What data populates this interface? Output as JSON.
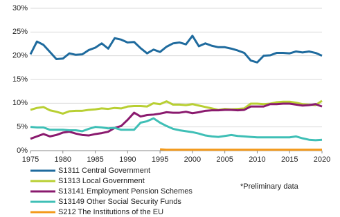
{
  "chart_data": {
    "type": "line",
    "x": [
      1975,
      1976,
      1977,
      1978,
      1979,
      1980,
      1981,
      1982,
      1983,
      1984,
      1985,
      1986,
      1987,
      1988,
      1989,
      1990,
      1991,
      1992,
      1993,
      1994,
      1995,
      1996,
      1997,
      1998,
      1999,
      2000,
      2001,
      2002,
      2003,
      2004,
      2005,
      2006,
      2007,
      2008,
      2009,
      2010,
      2011,
      2012,
      2013,
      2014,
      2015,
      2016,
      2017,
      2018,
      2019,
      2020
    ],
    "xlim": [
      1975,
      2020
    ],
    "xticks": [
      1975,
      1980,
      1985,
      1990,
      1995,
      2000,
      2005,
      2010,
      2015,
      2020
    ],
    "ylim": [
      0,
      30
    ],
    "yticks": [
      {
        "value": 0,
        "label": "0%"
      },
      {
        "value": 5,
        "label": "5%"
      },
      {
        "value": 10,
        "label": "10%"
      },
      {
        "value": 15,
        "label": "15%"
      },
      {
        "value": 20,
        "label": "20%"
      },
      {
        "value": 25,
        "label": "25%"
      },
      {
        "value": 30,
        "label": "30%"
      }
    ],
    "grid": true,
    "annotation": "*Preliminary data",
    "series": [
      {
        "name": "S1311 Central Government",
        "color": "#1f6b9e",
        "values": [
          20.3,
          23.0,
          22.3,
          20.8,
          19.3,
          19.4,
          20.5,
          20.2,
          20.3,
          21.2,
          21.7,
          22.6,
          21.5,
          23.7,
          23.4,
          22.8,
          22.9,
          21.6,
          20.5,
          21.3,
          20.8,
          21.9,
          22.6,
          22.8,
          22.4,
          24.2,
          22.0,
          22.6,
          22.1,
          21.8,
          21.8,
          21.5,
          21.1,
          20.6,
          19.0,
          18.6,
          20.0,
          20.1,
          20.6,
          20.6,
          20.5,
          20.9,
          20.7,
          20.9,
          20.6,
          20.0
        ]
      },
      {
        "name": "S1313 Local Government",
        "color": "#b8cf32",
        "values": [
          8.6,
          9.0,
          9.2,
          8.5,
          8.2,
          7.8,
          8.3,
          8.4,
          8.4,
          8.6,
          8.7,
          8.9,
          8.8,
          9.0,
          8.9,
          9.3,
          9.4,
          9.4,
          9.3,
          10.0,
          9.8,
          10.4,
          9.7,
          9.7,
          9.6,
          9.8,
          9.5,
          9.2,
          8.9,
          8.6,
          8.8,
          8.7,
          8.8,
          8.9,
          9.9,
          9.9,
          9.8,
          9.9,
          10.2,
          10.3,
          10.3,
          10.1,
          9.8,
          9.7,
          9.6,
          10.5
        ]
      },
      {
        "name": "S13141 Employment Pension Schemes",
        "color": "#8a1a6e",
        "values": [
          2.5,
          3.0,
          3.5,
          3.0,
          3.3,
          3.8,
          4.0,
          3.6,
          3.3,
          3.2,
          3.5,
          3.7,
          4.0,
          4.8,
          5.2,
          6.5,
          8.0,
          7.2,
          7.5,
          7.6,
          7.8,
          8.1,
          8.0,
          8.0,
          8.2,
          7.9,
          8.1,
          8.4,
          8.5,
          8.5,
          8.6,
          8.6,
          8.5,
          8.6,
          9.3,
          9.3,
          9.3,
          9.8,
          9.8,
          9.9,
          9.9,
          9.7,
          9.5,
          9.6,
          9.8,
          9.3
        ]
      },
      {
        "name": "S13149 Other Social Security Funds",
        "color": "#3fbfb6",
        "values": [
          5.0,
          4.9,
          4.9,
          4.4,
          4.4,
          4.4,
          4.3,
          4.3,
          4.1,
          4.6,
          5.0,
          4.9,
          4.7,
          4.8,
          4.4,
          4.4,
          4.4,
          5.9,
          6.2,
          6.8,
          5.9,
          5.2,
          4.6,
          4.3,
          4.1,
          3.9,
          3.6,
          3.2,
          3.0,
          2.9,
          3.1,
          3.3,
          3.1,
          3.0,
          2.9,
          2.8,
          2.8,
          2.8,
          2.8,
          2.8,
          2.8,
          3.0,
          2.6,
          2.3,
          2.2,
          2.3
        ]
      },
      {
        "name": "S212 The Institutions of the EU",
        "color": "#f39a1b",
        "values": [
          null,
          null,
          null,
          null,
          null,
          null,
          null,
          null,
          null,
          null,
          null,
          null,
          null,
          null,
          null,
          null,
          null,
          null,
          null,
          null,
          0.3,
          0.2,
          0.2,
          0.2,
          0.2,
          0.2,
          0.2,
          0.2,
          0.2,
          0.2,
          0.2,
          0.2,
          0.2,
          0.2,
          0.2,
          0.2,
          0.2,
          0.2,
          0.2,
          0.2,
          0.2,
          0.2,
          0.2,
          0.2,
          0.2,
          0.2
        ]
      }
    ]
  }
}
